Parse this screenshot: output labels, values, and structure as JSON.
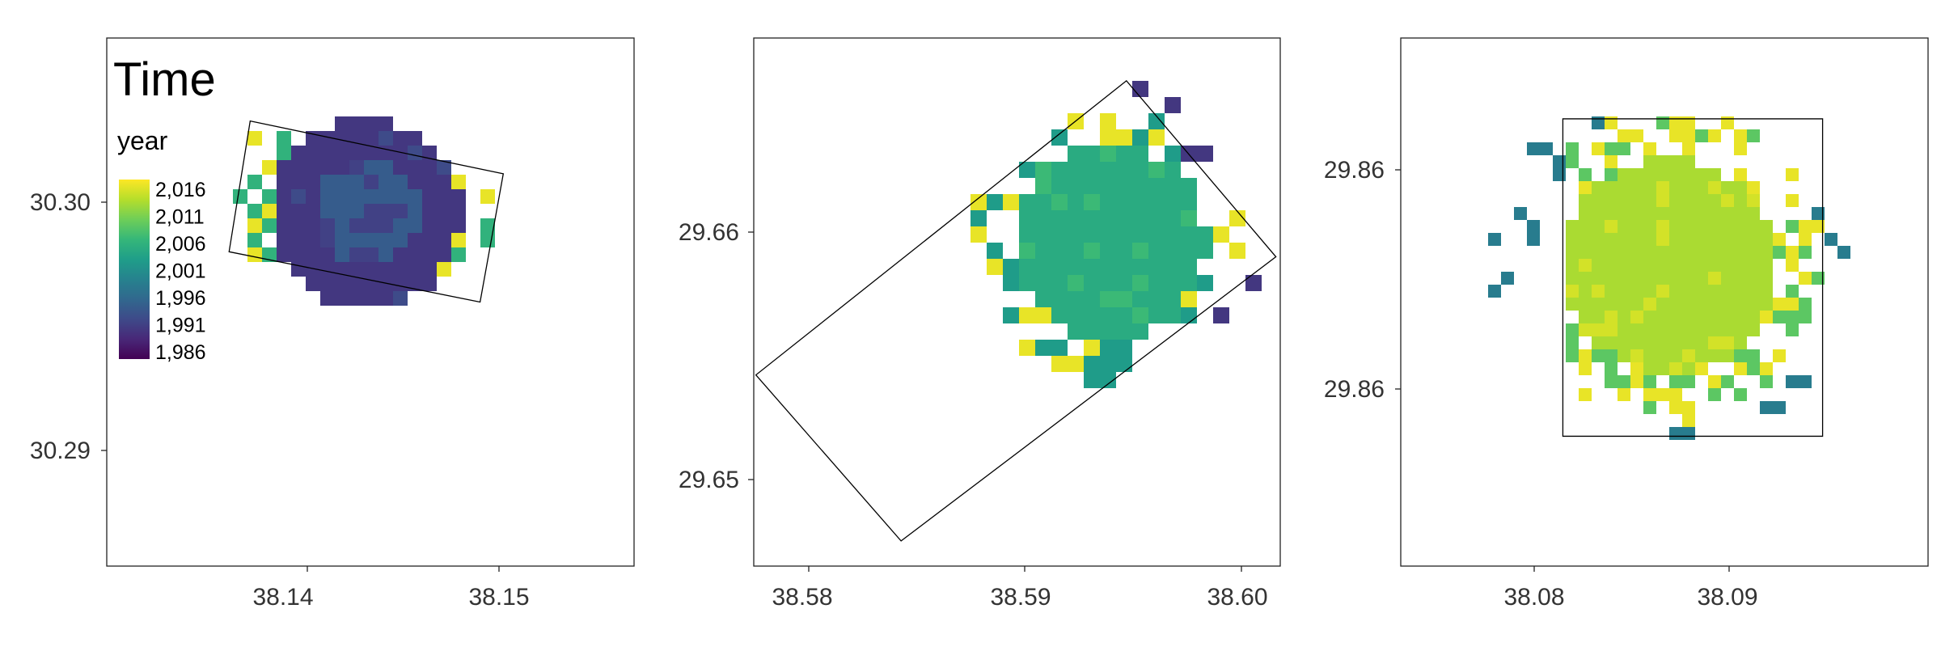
{
  "chart_data": [
    {
      "type": "heatmap",
      "panel": 1,
      "xlim": [
        38.1325,
        38.1575
      ],
      "ylim": [
        30.2845,
        30.3055
      ],
      "x_ticks": [
        "38.14",
        "38.15"
      ],
      "y_ticks": [
        "30.30",
        "30.29"
      ],
      "grid": false,
      "dominant_value": 1991,
      "center_value": 1995,
      "edge_values": [
        2006,
        2016
      ],
      "boundary": [
        [
          38.1383,
          30.297
        ],
        [
          38.1393,
          30.3022
        ],
        [
          38.1513,
          30.3001
        ],
        [
          38.1502,
          30.295
        ]
      ],
      "disk": {
        "cx": 38.1448,
        "cy": 30.2985,
        "r": 0.0045
      },
      "title": "",
      "xlabel": "",
      "ylabel": ""
    },
    {
      "type": "heatmap",
      "panel": 2,
      "xlim": [
        38.5778,
        38.6021
      ],
      "ylim": [
        29.6472,
        29.6682
      ],
      "x_ticks": [
        "38.58",
        "38.59",
        "38.60"
      ],
      "y_ticks": [
        "29.66",
        "29.65"
      ],
      "grid": false,
      "dominant_value": 2005,
      "edge_values": [
        2003,
        2016
      ],
      "outlier_values": [
        1991
      ],
      "boundary": [
        [
          38.5779,
          29.6548
        ],
        [
          38.5846,
          29.6482
        ],
        [
          38.6019,
          29.6595
        ],
        [
          38.595,
          29.6665
        ]
      ],
      "disk": {
        "cx": 38.5942,
        "cy": 29.6601,
        "r": 0.0045
      },
      "title": "",
      "xlabel": "",
      "ylabel": ""
    },
    {
      "type": "heatmap",
      "panel": 3,
      "xlim": [
        38.0713,
        38.0983
      ],
      "ylim": [
        29.8511,
        29.8694
      ],
      "x_ticks": [
        "38.08",
        "38.09"
      ],
      "y_ticks": [
        "29.86",
        "29.86"
      ],
      "grid": false,
      "dominant_value": 2013,
      "edge_values": [
        2009,
        2016
      ],
      "outlier_values": [
        1999
      ],
      "boundary": [
        [
          38.0796,
          29.8556
        ],
        [
          38.0796,
          29.8666
        ],
        [
          38.0929,
          29.8666
        ],
        [
          38.0929,
          29.8556
        ]
      ],
      "disk": {
        "cx": 38.0851,
        "cy": 29.8615,
        "r": 0.0055
      },
      "title": "",
      "xlabel": "",
      "ylabel": ""
    }
  ],
  "legend": {
    "title": "Time",
    "subtitle": "year",
    "labels": [
      "2,016",
      "2,011",
      "2,006",
      "2,001",
      "1,996",
      "1,991",
      "1,986"
    ],
    "value_min": 1986,
    "value_max": 2017,
    "palette": "viridis"
  },
  "colors": {
    "viridis": [
      "#440154",
      "#482878",
      "#3e4a89",
      "#31688e",
      "#26828e",
      "#1f9e89",
      "#35b779",
      "#6ece58",
      "#b5de2b",
      "#fde725"
    ],
    "frame": "#000000"
  }
}
